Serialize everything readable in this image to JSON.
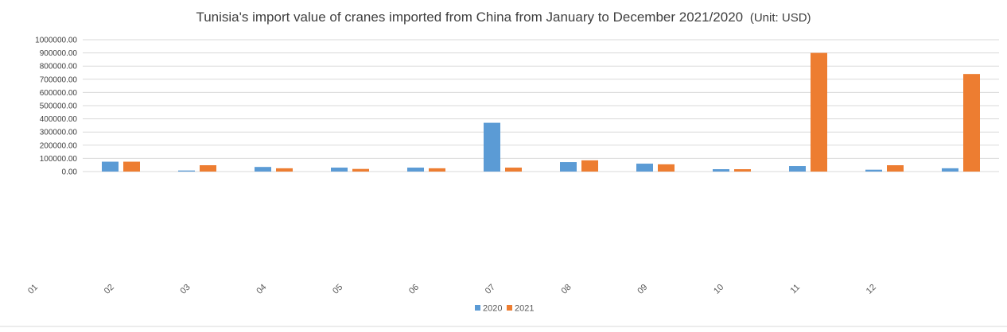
{
  "chart_data": {
    "type": "bar",
    "title": "Tunisia's import value of cranes imported from China from January to December 2021/2020",
    "title_unit": "(Unit: USD)",
    "xlabel": "",
    "ylabel": "",
    "ylim": [
      0,
      1000000
    ],
    "yticks": [
      "0.00",
      "100000.00",
      "200000.00",
      "300000.00",
      "400000.00",
      "500000.00",
      "600000.00",
      "700000.00",
      "800000.00",
      "900000.00",
      "1000000.00"
    ],
    "categories": [
      "01",
      "02",
      "03",
      "04",
      "05",
      "06",
      "07",
      "08",
      "09",
      "10",
      "11",
      "12"
    ],
    "legend_position": "bottom",
    "grid": true,
    "series": [
      {
        "name": "2020",
        "color": "#5b9bd5",
        "values": [
          75000,
          8000,
          35000,
          30000,
          30000,
          370000,
          72000,
          60000,
          18000,
          42000,
          14000,
          25000
        ]
      },
      {
        "name": "2021",
        "color": "#ed7d31",
        "values": [
          75000,
          48000,
          25000,
          20000,
          25000,
          30000,
          85000,
          55000,
          18000,
          900000,
          48000,
          740000
        ]
      }
    ]
  }
}
